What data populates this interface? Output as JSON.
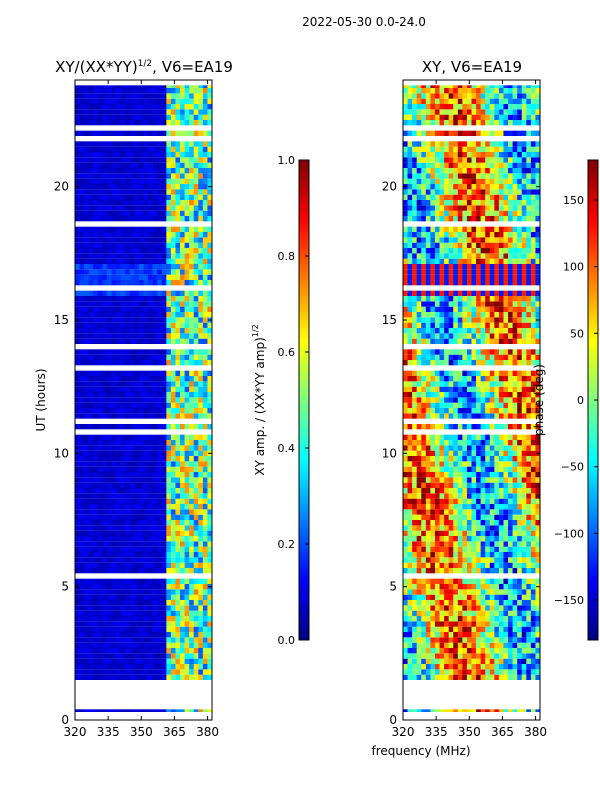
{
  "suptitle": "2022-05-30 0.0-24.0",
  "colors": {
    "jet": [
      "#00007f",
      "#0000ff",
      "#007fff",
      "#00ffff",
      "#7fff7f",
      "#ffff00",
      "#ff7f00",
      "#ff0000",
      "#7f0000"
    ],
    "gap": "#ffffff",
    "axis": "#000000"
  },
  "chart_data": [
    {
      "type": "heatmap",
      "name": "amplitude",
      "title": "XY/(XX*YY)",
      "title_exp": "1/2",
      "title_suffix": ", V6=EA19",
      "xlabel": "",
      "ylabel": "UT (hours)",
      "xlim": [
        320,
        382
      ],
      "ylim": [
        0,
        24
      ],
      "xticks": [
        320,
        335,
        350,
        365,
        380
      ],
      "yticks": [
        0,
        5,
        10,
        15,
        20
      ],
      "colorbar": {
        "label": "XY amp. / (XX*YY amp)",
        "label_exp": "1/2",
        "range": [
          0.0,
          1.0
        ],
        "ticks": [
          "0.0",
          "0.2",
          "0.4",
          "0.6",
          "0.8",
          "1.0"
        ],
        "tick_values": [
          0.0,
          0.2,
          0.4,
          0.6,
          0.8,
          1.0
        ]
      },
      "data_coverage_ut": [
        [
          0.3,
          0.4
        ],
        [
          1.5,
          23.8
        ]
      ],
      "rfi_band_mhz": [
        360,
        382
      ],
      "background_level": 0.05,
      "rfi_level_range": [
        0.2,
        0.75
      ]
    },
    {
      "type": "heatmap",
      "name": "phase",
      "title": "XY, V6=EA19",
      "xlabel": "frequency (MHz)",
      "ylabel": "",
      "xlim": [
        320,
        382
      ],
      "ylim": [
        0,
        24
      ],
      "xticks": [
        320,
        335,
        350,
        365,
        380
      ],
      "yticks": [
        0,
        5,
        10,
        15,
        20
      ],
      "colorbar": {
        "label": "phase (deg)",
        "range": [
          -180,
          180
        ],
        "ticks": [
          "150",
          "100",
          "50",
          "0",
          "−50",
          "−100",
          "−150"
        ],
        "tick_values": [
          150,
          100,
          50,
          0,
          -50,
          -100,
          -150
        ]
      },
      "data_coverage_ut": [
        [
          0.3,
          0.4
        ],
        [
          1.5,
          23.8
        ]
      ],
      "phase_range_deg": [
        -180,
        180
      ]
    }
  ]
}
